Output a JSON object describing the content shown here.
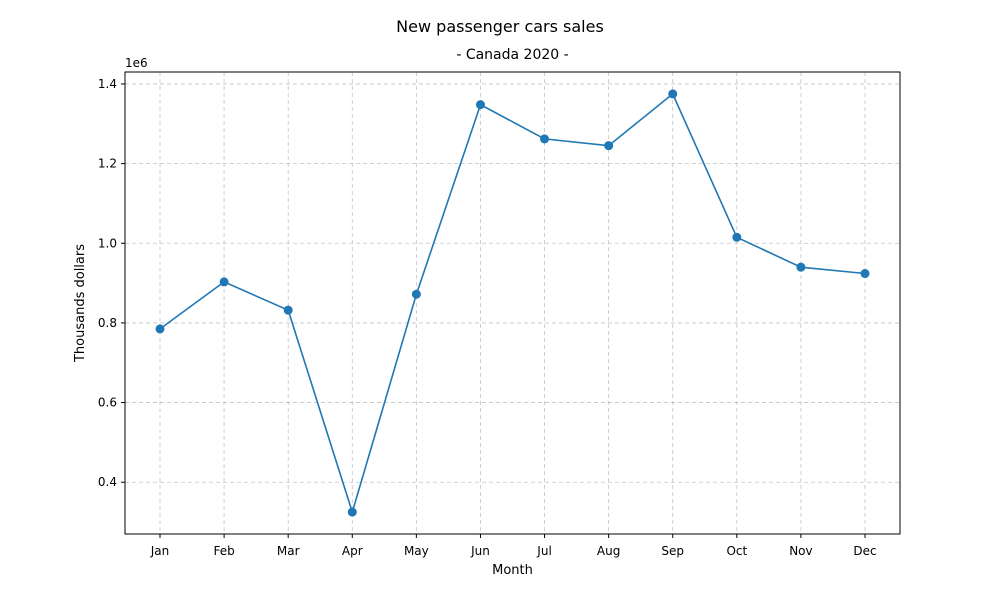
{
  "chart_data": {
    "type": "line",
    "title": "New passenger cars sales",
    "subtitle": "- Canada 2020 -",
    "xlabel": "Month",
    "ylabel": "Thousands dollars",
    "y_offset_label": "1e6",
    "categories": [
      "Jan",
      "Feb",
      "Mar",
      "Apr",
      "May",
      "Jun",
      "Jul",
      "Aug",
      "Sep",
      "Oct",
      "Nov",
      "Dec"
    ],
    "values": [
      785000,
      903000,
      832000,
      325000,
      872000,
      1348000,
      1262000,
      1245000,
      1375000,
      1015000,
      940000,
      924000
    ],
    "ylim": [
      270000.0,
      1430000.0
    ],
    "y_ticks": [
      400000,
      600000,
      800000,
      1000000,
      1200000,
      1400000
    ],
    "y_tick_labels": [
      "0.4",
      "0.6",
      "0.8",
      "1.0",
      "1.2",
      "1.4"
    ],
    "grid": true,
    "marker": "circle",
    "color": "#1f77b4"
  }
}
